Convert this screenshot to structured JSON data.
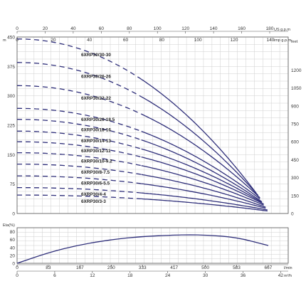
{
  "chart_data": [
    {
      "type": "line",
      "title": "",
      "axes": {
        "x_top_1": {
          "label": "US g.p.m",
          "ticks": [
            "0",
            "20",
            "40",
            "60",
            "80",
            "100",
            "120",
            "140",
            "160",
            "180"
          ]
        },
        "x_top_2": {
          "label": "imp g.p.m",
          "ticks": [
            "0",
            "20",
            "40",
            "60",
            "80",
            "100",
            "120",
            "140"
          ]
        },
        "y_left": {
          "label": "m",
          "ticks": [
            "0",
            "75",
            "150",
            "225",
            "300",
            "375",
            "450"
          ],
          "range": [
            0,
            450
          ]
        },
        "y_right": {
          "label": "feet",
          "ticks": [
            "0",
            "150",
            "300",
            "450",
            "600",
            "750",
            "900",
            "1050",
            "1200"
          ]
        },
        "x_range_lmin": [
          0,
          720
        ]
      },
      "x_unit": "l/min",
      "dashed_segment_end_lmin": 330,
      "series": [
        {
          "name": "6XRP30/30-30",
          "shutoff": 445,
          "end_head": 52,
          "end_flow": 635
        },
        {
          "name": "6XRP30/26-26",
          "shutoff": 385,
          "end_head": 46,
          "end_flow": 640
        },
        {
          "name": "6XRP30/22-22",
          "shutoff": 326,
          "end_head": 40,
          "end_flow": 645
        },
        {
          "name": "6XRP30/20-18.5",
          "shutoff": 268,
          "end_head": 35,
          "end_flow": 648
        },
        {
          "name": "6XRP30/18-16",
          "shutoff": 240,
          "end_head": 30,
          "end_flow": 650
        },
        {
          "name": "6XRP30/14-13",
          "shutoff": 210,
          "end_head": 27,
          "end_flow": 652
        },
        {
          "name": "6XRP30/12-11",
          "shutoff": 183,
          "end_head": 24,
          "end_flow": 655
        },
        {
          "name": "6XRP30/10-9.2",
          "shutoff": 155,
          "end_head": 20,
          "end_flow": 658
        },
        {
          "name": "6XRP30/8-7.5",
          "shutoff": 126,
          "end_head": 16,
          "end_flow": 660
        },
        {
          "name": "6XRP30/6-5.5",
          "shutoff": 96,
          "end_head": 13,
          "end_flow": 662
        },
        {
          "name": "6XRP30/4-4",
          "shutoff": 66,
          "end_head": 9,
          "end_flow": 665
        },
        {
          "name": "6XRP30/3-3",
          "shutoff": 47,
          "end_head": 6,
          "end_flow": 668
        }
      ]
    },
    {
      "type": "line",
      "title": "",
      "ylabel": "Eta(%)",
      "yticks": [
        "0",
        "20",
        "40",
        "60",
        "80"
      ],
      "ylim": [
        0,
        90
      ],
      "xticks_lmin": [
        "0",
        "83",
        "167",
        "250",
        "333",
        "417",
        "500",
        "583",
        "667"
      ],
      "xunit_1": "l/min",
      "xticks_m3h": [
        "0",
        "6",
        "12",
        "18",
        "24",
        "30",
        "36",
        "42"
      ],
      "xunit_2": "m³/h",
      "x_range_lmin": [
        0,
        720
      ],
      "series": [
        {
          "x": [
            0,
            83,
            167,
            250,
            333,
            417,
            460,
            500,
            583,
            667
          ],
          "y": [
            0,
            27,
            47,
            60,
            68,
            71.5,
            72,
            71.5,
            66,
            45
          ]
        }
      ]
    }
  ]
}
